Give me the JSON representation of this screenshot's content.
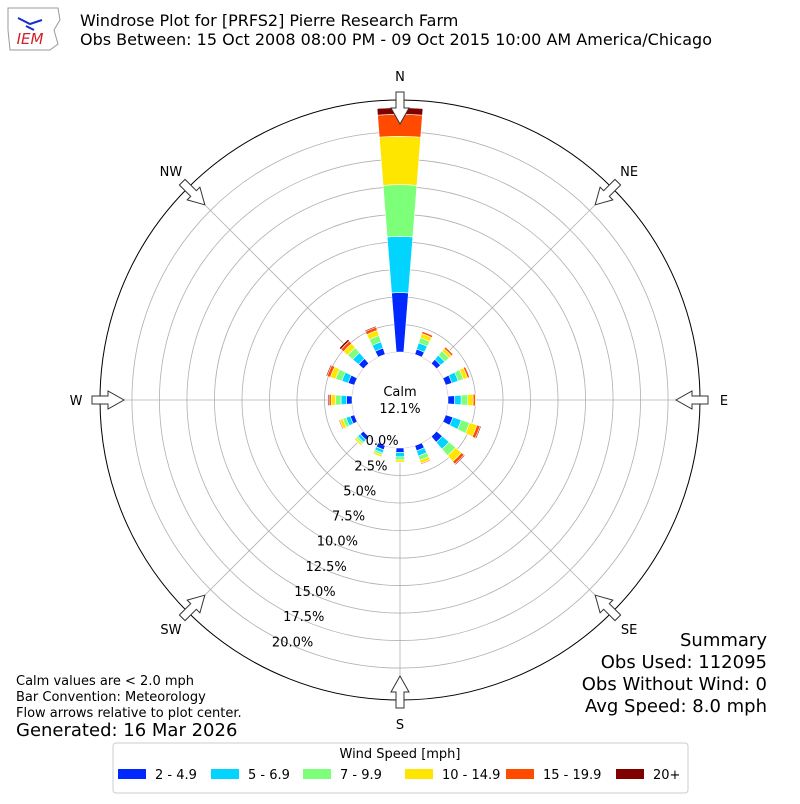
{
  "chart_data": {
    "type": "windrose",
    "logo_text": "IEM",
    "title": "Windrose Plot for [PRFS2] Pierre Research Farm",
    "subtitle": "Obs Between: 15 Oct 2008 08:00 PM - 09 Oct 2015 10:00 AM America/Chicago",
    "categories": [
      "N",
      null,
      "NE",
      null,
      "E",
      null,
      "SE",
      null,
      "S",
      null,
      "SW",
      null,
      "W",
      null,
      "NW",
      null
    ],
    "series": [
      {
        "name": "2 - 4.9",
        "color": "#0028ff",
        "values": [
          5.4,
          0.5,
          0.5,
          0.6,
          0.6,
          0.7,
          0.7,
          0.5,
          0.4,
          0.4,
          0.4,
          0.4,
          0.5,
          0.6,
          0.6,
          0.6
        ]
      },
      {
        "name": "5 - 6.9",
        "color": "#00d4ff",
        "values": [
          5.1,
          0.6,
          0.5,
          0.6,
          0.6,
          0.8,
          0.8,
          0.5,
          0.4,
          0.3,
          0.3,
          0.4,
          0.5,
          0.6,
          0.7,
          0.6
        ]
      },
      {
        "name": "7 - 9.9",
        "color": "#7dff7a",
        "values": [
          4.7,
          0.5,
          0.5,
          0.5,
          0.6,
          0.8,
          0.8,
          0.4,
          0.3,
          0.2,
          0.2,
          0.3,
          0.5,
          0.6,
          0.6,
          0.6
        ]
      },
      {
        "name": "10 - 14.9",
        "color": "#ffe600",
        "values": [
          4.4,
          0.4,
          0.3,
          0.4,
          0.5,
          0.7,
          0.7,
          0.3,
          0.2,
          0.2,
          0.2,
          0.3,
          0.4,
          0.5,
          0.5,
          0.5
        ]
      },
      {
        "name": "15 - 19.9",
        "color": "#ff4a00",
        "values": [
          2.0,
          0.2,
          0.2,
          0.2,
          0.2,
          0.3,
          0.3,
          0.1,
          0,
          0,
          0,
          0.1,
          0.2,
          0.3,
          0.3,
          0.3
        ]
      },
      {
        "name": "20+",
        "color": "#800000",
        "values": [
          0.6,
          0,
          0,
          0,
          0,
          0.1,
          0.1,
          0,
          0,
          0,
          0,
          0,
          0.1,
          0.1,
          0.2,
          0.1
        ]
      }
    ],
    "ylim": [
      0,
      22.9
    ],
    "yticks": [
      {
        "value": 0,
        "label": "0.0%"
      },
      {
        "value": 2.5,
        "label": "2.5%"
      },
      {
        "value": 5,
        "label": "5.0%"
      },
      {
        "value": 7.5,
        "label": "7.5%"
      },
      {
        "value": 10,
        "label": "10.0%"
      },
      {
        "value": 12.5,
        "label": "12.5%"
      },
      {
        "value": 15,
        "label": "15.0%"
      },
      {
        "value": 17.5,
        "label": "17.5%"
      },
      {
        "value": 20,
        "label": "20.0%"
      }
    ],
    "grid": true,
    "calm": {
      "label": "Calm",
      "value": 12.1,
      "value_label": "12.1%"
    },
    "legend_title": "Wind Speed [mph]",
    "notes": [
      "Calm values are < 2.0 mph",
      "Bar Convention: Meteorology",
      "Flow arrows relative to plot center."
    ],
    "generated": "Generated: 16 Mar 2026",
    "summary": [
      "Summary",
      "Obs Used: 112095",
      "Obs Without Wind: 0",
      "Avg Speed: 8.0 mph"
    ]
  }
}
